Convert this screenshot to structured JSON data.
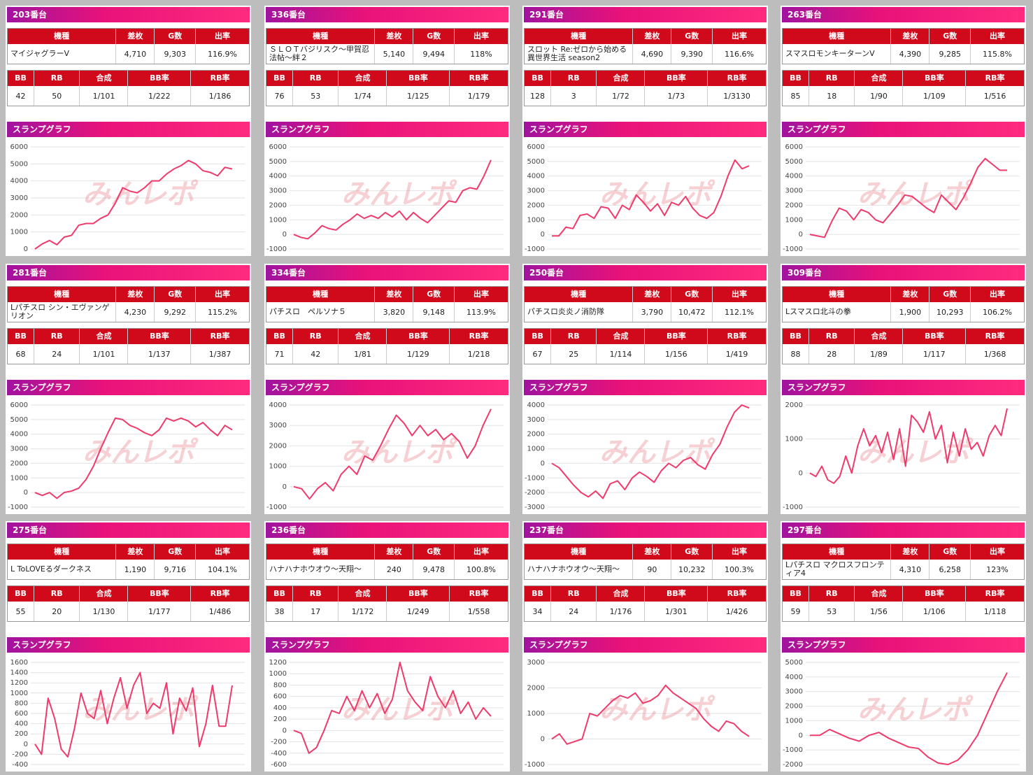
{
  "watermark": "みんレポ",
  "graph_title": "スランプグラフ",
  "model_headers": [
    "機種",
    "差枚",
    "G数",
    "出率"
  ],
  "count_headers": [
    "BB",
    "RB",
    "合成",
    "BB率",
    "RB率"
  ],
  "panels": [
    {
      "title": "203番台",
      "model_row": [
        "マイジャグラーV",
        "4,710",
        "9,303",
        "116.9%"
      ],
      "count_row": [
        "42",
        "50",
        "1/101",
        "1/222",
        "1/186"
      ],
      "chart": {
        "type": "line",
        "ylim": [
          0,
          6000
        ],
        "yticks": [
          0,
          1000,
          2000,
          3000,
          4000,
          5000,
          6000
        ],
        "values": [
          0,
          300,
          500,
          250,
          700,
          800,
          1400,
          1500,
          1500,
          1800,
          2000,
          2700,
          3600,
          3400,
          3300,
          3600,
          4000,
          4000,
          4400,
          4700,
          4900,
          5200,
          5000,
          4600,
          4500,
          4300,
          4800,
          4700
        ]
      }
    },
    {
      "title": "336番台",
      "model_row": [
        "ＳＬＯＴバジリスク～甲賀忍法帖～絆２",
        "5,140",
        "9,494",
        "118%"
      ],
      "count_row": [
        "76",
        "53",
        "1/74",
        "1/125",
        "1/179"
      ],
      "chart": {
        "type": "line",
        "ylim": [
          -1000,
          6000
        ],
        "yticks": [
          -1000,
          0,
          1000,
          2000,
          3000,
          4000,
          5000,
          6000
        ],
        "values": [
          0,
          -200,
          -300,
          100,
          600,
          400,
          300,
          700,
          1000,
          1400,
          1100,
          1300,
          1100,
          1500,
          1200,
          1600,
          1000,
          1500,
          1100,
          800,
          1300,
          1800,
          2300,
          2200,
          3000,
          3200,
          3100,
          4000,
          5100
        ]
      }
    },
    {
      "title": "291番台",
      "model_row": [
        "スロット Re:ゼロから始める異世界生活 season2",
        "4,690",
        "9,390",
        "116.6%"
      ],
      "count_row": [
        "128",
        "3",
        "1/72",
        "1/73",
        "1/3130"
      ],
      "chart": {
        "type": "line",
        "ylim": [
          -1000,
          6000
        ],
        "yticks": [
          -1000,
          0,
          1000,
          2000,
          3000,
          4000,
          5000,
          6000
        ],
        "values": [
          -100,
          -100,
          500,
          400,
          1300,
          1400,
          1100,
          1900,
          1800,
          1100,
          2000,
          1700,
          2700,
          2200,
          1600,
          2100,
          1300,
          2200,
          2000,
          2600,
          1800,
          1300,
          1100,
          1500,
          2600,
          4000,
          5100,
          4500,
          4700
        ]
      }
    },
    {
      "title": "263番台",
      "model_row": [
        "スマスロモンキーターンV",
        "4,390",
        "9,285",
        "115.8%"
      ],
      "count_row": [
        "85",
        "18",
        "1/90",
        "1/109",
        "1/516"
      ],
      "chart": {
        "type": "line",
        "ylim": [
          -1000,
          6000
        ],
        "yticks": [
          -1000,
          0,
          1000,
          2000,
          3000,
          4000,
          5000,
          6000
        ],
        "values": [
          0,
          -100,
          -200,
          900,
          1800,
          1600,
          1000,
          1700,
          1500,
          1000,
          800,
          1400,
          2000,
          2700,
          2600,
          2200,
          1800,
          1500,
          2700,
          2200,
          1700,
          2500,
          3500,
          4600,
          5200,
          4800,
          4400,
          4400
        ]
      }
    },
    {
      "title": "281番台",
      "model_row": [
        "Lパチスロ シン・エヴァンゲリオン",
        "4,230",
        "9,292",
        "115.2%"
      ],
      "count_row": [
        "68",
        "24",
        "1/101",
        "1/137",
        "1/387"
      ],
      "chart": {
        "type": "line",
        "ylim": [
          -1000,
          6000
        ],
        "yticks": [
          -1000,
          0,
          1000,
          2000,
          3000,
          4000,
          5000,
          6000
        ],
        "values": [
          0,
          -200,
          0,
          -400,
          0,
          100,
          300,
          900,
          1800,
          3000,
          4100,
          5100,
          5000,
          4600,
          4400,
          4100,
          3900,
          4300,
          5100,
          4900,
          5100,
          4900,
          4500,
          4800,
          4300,
          3900,
          4600,
          4300
        ]
      }
    },
    {
      "title": "334番台",
      "model_row": [
        "パチスロ　ペルソナ５",
        "3,820",
        "9,148",
        "113.9%"
      ],
      "count_row": [
        "71",
        "42",
        "1/81",
        "1/129",
        "1/218"
      ],
      "chart": {
        "type": "line",
        "ylim": [
          -1000,
          4000
        ],
        "yticks": [
          -1000,
          0,
          1000,
          2000,
          3000,
          4000
        ],
        "values": [
          0,
          -100,
          -600,
          -100,
          200,
          -200,
          600,
          1000,
          600,
          1500,
          1300,
          2000,
          2800,
          3500,
          3100,
          2500,
          3000,
          2500,
          2800,
          2300,
          2600,
          2200,
          1400,
          2000,
          3000,
          3800
        ]
      }
    },
    {
      "title": "250番台",
      "model_row": [
        "パチスロ炎炎ノ消防隊",
        "3,790",
        "10,472",
        "112.1%"
      ],
      "count_row": [
        "67",
        "25",
        "1/114",
        "1/156",
        "1/419"
      ],
      "chart": {
        "type": "line",
        "ylim": [
          -3000,
          4000
        ],
        "yticks": [
          -3000,
          -2000,
          -1000,
          0,
          1000,
          2000,
          3000,
          4000
        ],
        "values": [
          0,
          -300,
          -900,
          -1500,
          -2000,
          -2300,
          -1900,
          -2400,
          -1400,
          -1200,
          -1800,
          -1000,
          -600,
          -900,
          -1300,
          -500,
          0,
          -300,
          200,
          400,
          -100,
          -400,
          600,
          1300,
          2500,
          3500,
          4000,
          3800
        ]
      }
    },
    {
      "title": "309番台",
      "model_row": [
        "Lスマスロ北斗の拳",
        "1,900",
        "10,293",
        "106.2%"
      ],
      "count_row": [
        "88",
        "28",
        "1/89",
        "1/117",
        "1/368"
      ],
      "chart": {
        "type": "line",
        "ylim": [
          -1000,
          2000
        ],
        "yticks": [
          -1000,
          0,
          1000,
          2000
        ],
        "values": [
          0,
          -100,
          200,
          -200,
          -300,
          -100,
          500,
          0,
          800,
          1300,
          800,
          1100,
          600,
          1200,
          400,
          1300,
          200,
          1700,
          1500,
          1200,
          1800,
          1000,
          1400,
          300,
          1200,
          500,
          1300,
          700,
          900,
          500,
          1100,
          1400,
          1100,
          1900
        ]
      }
    },
    {
      "title": "275番台",
      "model_row": [
        "L ToLOVEるダークネス",
        "1,190",
        "9,716",
        "104.1%"
      ],
      "count_row": [
        "55",
        "20",
        "1/130",
        "1/177",
        "1/486"
      ],
      "chart": {
        "type": "line",
        "ylim": [
          -400,
          1600
        ],
        "yticks": [
          -400,
          -200,
          0,
          200,
          400,
          600,
          800,
          1000,
          1200,
          1400,
          1600
        ],
        "values": [
          0,
          -200,
          900,
          500,
          -100,
          -250,
          300,
          1000,
          600,
          500,
          1050,
          400,
          900,
          1300,
          700,
          1150,
          1400,
          600,
          800,
          700,
          1200,
          200,
          900,
          650,
          1100,
          -50,
          400,
          1150,
          350,
          350,
          1150
        ]
      }
    },
    {
      "title": "236番台",
      "model_row": [
        "ハナハナホウオウ～天翔～",
        "240",
        "9,478",
        "100.8%"
      ],
      "count_row": [
        "38",
        "17",
        "1/172",
        "1/249",
        "1/558"
      ],
      "chart": {
        "type": "line",
        "ylim": [
          -600,
          1200
        ],
        "yticks": [
          -600,
          -400,
          -200,
          0,
          200,
          400,
          600,
          800,
          1000,
          1200
        ],
        "values": [
          0,
          -50,
          -400,
          -300,
          0,
          350,
          300,
          600,
          350,
          700,
          400,
          650,
          300,
          550,
          1200,
          700,
          500,
          350,
          950,
          600,
          400,
          700,
          300,
          500,
          200,
          400,
          250
        ]
      }
    },
    {
      "title": "237番台",
      "model_row": [
        "ハナハナホウオウ～天翔～",
        "90",
        "10,232",
        "100.3%"
      ],
      "count_row": [
        "34",
        "24",
        "1/176",
        "1/301",
        "1/426"
      ],
      "chart": {
        "type": "line",
        "ylim": [
          -1000,
          3000
        ],
        "yticks": [
          -1000,
          0,
          1000,
          2000,
          3000
        ],
        "values": [
          0,
          200,
          -200,
          -100,
          0,
          1000,
          900,
          1200,
          1500,
          1700,
          1600,
          1800,
          1400,
          1500,
          1700,
          2100,
          1800,
          1600,
          1400,
          1200,
          800,
          500,
          300,
          700,
          600,
          300,
          100
        ]
      }
    },
    {
      "title": "297番台",
      "model_row": [
        "Lパチスロ マクロスフロンティア4",
        "4,310",
        "6,258",
        "123%"
      ],
      "count_row": [
        "59",
        "53",
        "1/56",
        "1/106",
        "1/118"
      ],
      "chart": {
        "type": "line",
        "ylim": [
          -2000,
          5000
        ],
        "yticks": [
          -2000,
          -1000,
          0,
          1000,
          2000,
          3000,
          4000,
          5000
        ],
        "values": [
          0,
          0,
          400,
          100,
          -200,
          -400,
          0,
          200,
          -200,
          -500,
          -800,
          -900,
          -1500,
          -1900,
          -2000,
          -1700,
          -1000,
          0,
          1500,
          3000,
          4300
        ]
      }
    }
  ]
}
